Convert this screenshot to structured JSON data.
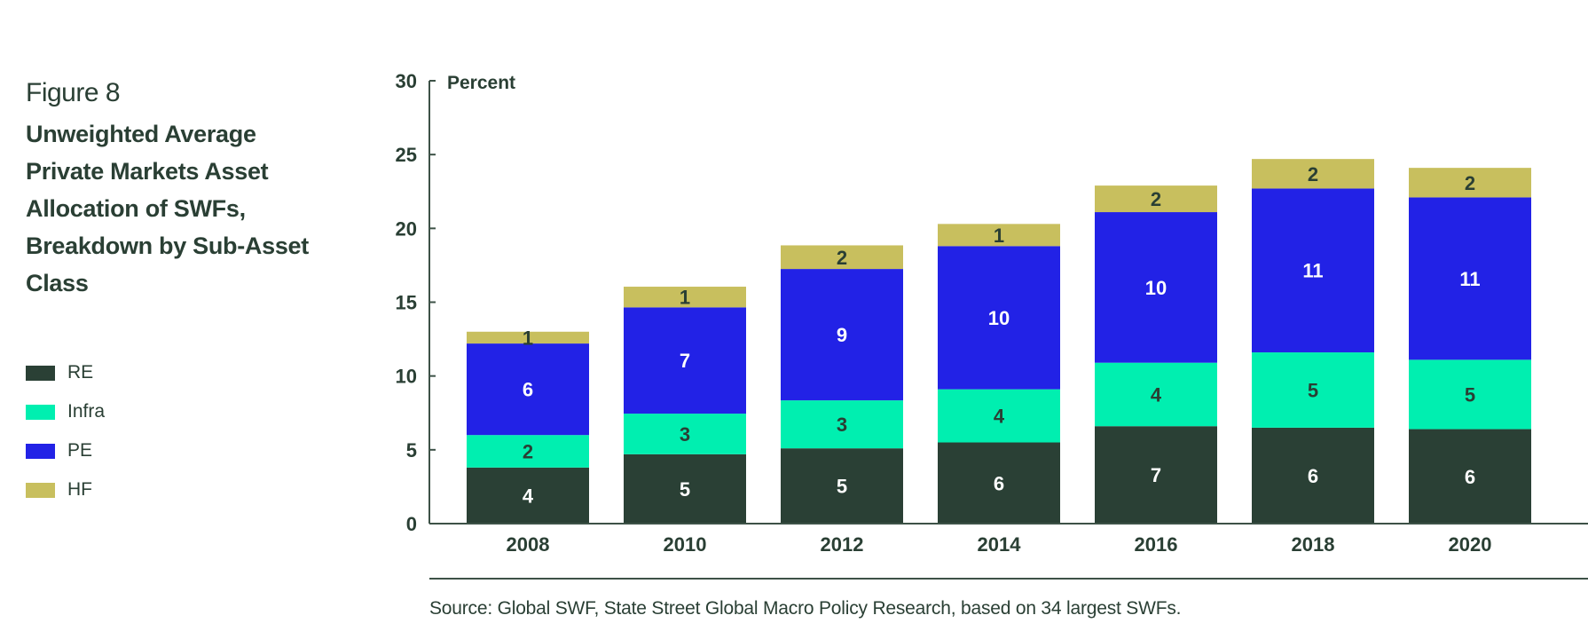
{
  "figure": {
    "label": "Figure 8",
    "title": "Unweighted Average Private Markets Asset Allocation of SWFs, Breakdown by Sub-Asset Class"
  },
  "legend": [
    {
      "key": "RE",
      "label": "RE",
      "color": "#2a4035"
    },
    {
      "key": "Infra",
      "label": "Infra",
      "color": "#00efb0"
    },
    {
      "key": "PE",
      "label": "PE",
      "color": "#2222e6"
    },
    {
      "key": "HF",
      "label": "HF",
      "color": "#c8bf5e"
    }
  ],
  "source": "Source: Global SWF, State Street Global Macro Policy Research, based on 34 largest SWFs.",
  "chart_data": {
    "type": "bar",
    "stacked": true,
    "title": "Unweighted Average Private Markets Asset Allocation of SWFs, Breakdown by Sub-Asset Class",
    "xlabel": "",
    "ylabel": "Percent",
    "ylim": [
      0,
      30
    ],
    "yticks": [
      0,
      5,
      10,
      15,
      20,
      25,
      30
    ],
    "grid": false,
    "legend_position": "left",
    "categories": [
      "2008",
      "2010",
      "2012",
      "2014",
      "2016",
      "2018",
      "2020"
    ],
    "series": [
      {
        "name": "RE",
        "color": "#2a4035",
        "label_color": "#ffffff",
        "values": [
          3.8,
          4.7,
          5.1,
          5.5,
          6.6,
          6.5,
          6.4
        ],
        "labels": [
          "4",
          "5",
          "5",
          "6",
          "7",
          "6",
          "6"
        ]
      },
      {
        "name": "Infra",
        "color": "#00efb0",
        "label_color": "#2a3f34",
        "values": [
          2.2,
          2.75,
          3.25,
          3.6,
          4.3,
          5.1,
          4.7
        ],
        "labels": [
          "2",
          "3",
          "3",
          "4",
          "4",
          "5",
          "5"
        ]
      },
      {
        "name": "PE",
        "color": "#2222e6",
        "label_color": "#ffffff",
        "values": [
          6.2,
          7.2,
          8.9,
          9.7,
          10.2,
          11.1,
          11.0
        ],
        "labels": [
          "6",
          "7",
          "9",
          "10",
          "10",
          "11",
          "11"
        ]
      },
      {
        "name": "HF",
        "color": "#c8bf5e",
        "label_color": "#2a3f34",
        "values": [
          0.8,
          1.4,
          1.6,
          1.5,
          1.8,
          2.0,
          2.0
        ],
        "labels": [
          "1",
          "1",
          "2",
          "1",
          "2",
          "2",
          "2"
        ]
      }
    ]
  }
}
